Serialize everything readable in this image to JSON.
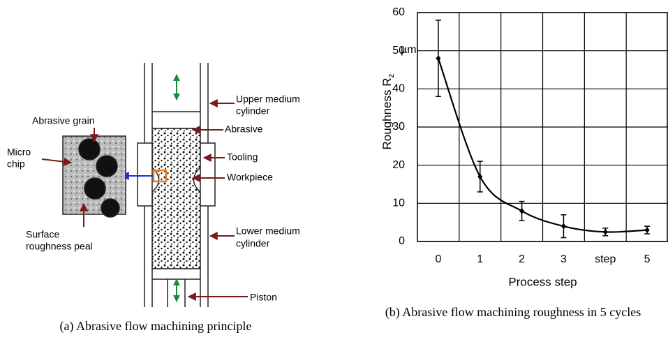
{
  "diagram": {
    "upper_medium_cylinder": [
      "Upper medium",
      "cylinder"
    ],
    "abrasive": "Abrasive",
    "tooling": "Tooling",
    "workpiece": "Workpiece",
    "lower_medium_cylinder": [
      "Lower medium",
      "cylinder"
    ],
    "piston": "Piston",
    "abrasive_grain": "Abrasive grain",
    "micro_chip": [
      "Micro",
      "chip"
    ],
    "surface_roughness_peal": [
      "Surface",
      "roughness peal"
    ],
    "caption": "(a) Abrasive flow machining principle"
  },
  "chart_data": {
    "type": "line",
    "caption": "(b) Abrasive flow machining roughness in 5 cycles",
    "x_label": "Process step",
    "y_label": "Roughness R",
    "y_label_subscript": "z",
    "y_unit": "µm",
    "categories": [
      "0",
      "1",
      "2",
      "3",
      "step",
      "5"
    ],
    "values": [
      48,
      17,
      8,
      4,
      2.5,
      3
    ],
    "errors": [
      10,
      4,
      2.5,
      3,
      1,
      1
    ],
    "color": "#000000",
    "ylim": [
      0,
      60
    ],
    "yticks": [
      0,
      10,
      20,
      30,
      40,
      50,
      60
    ],
    "grid": true
  }
}
